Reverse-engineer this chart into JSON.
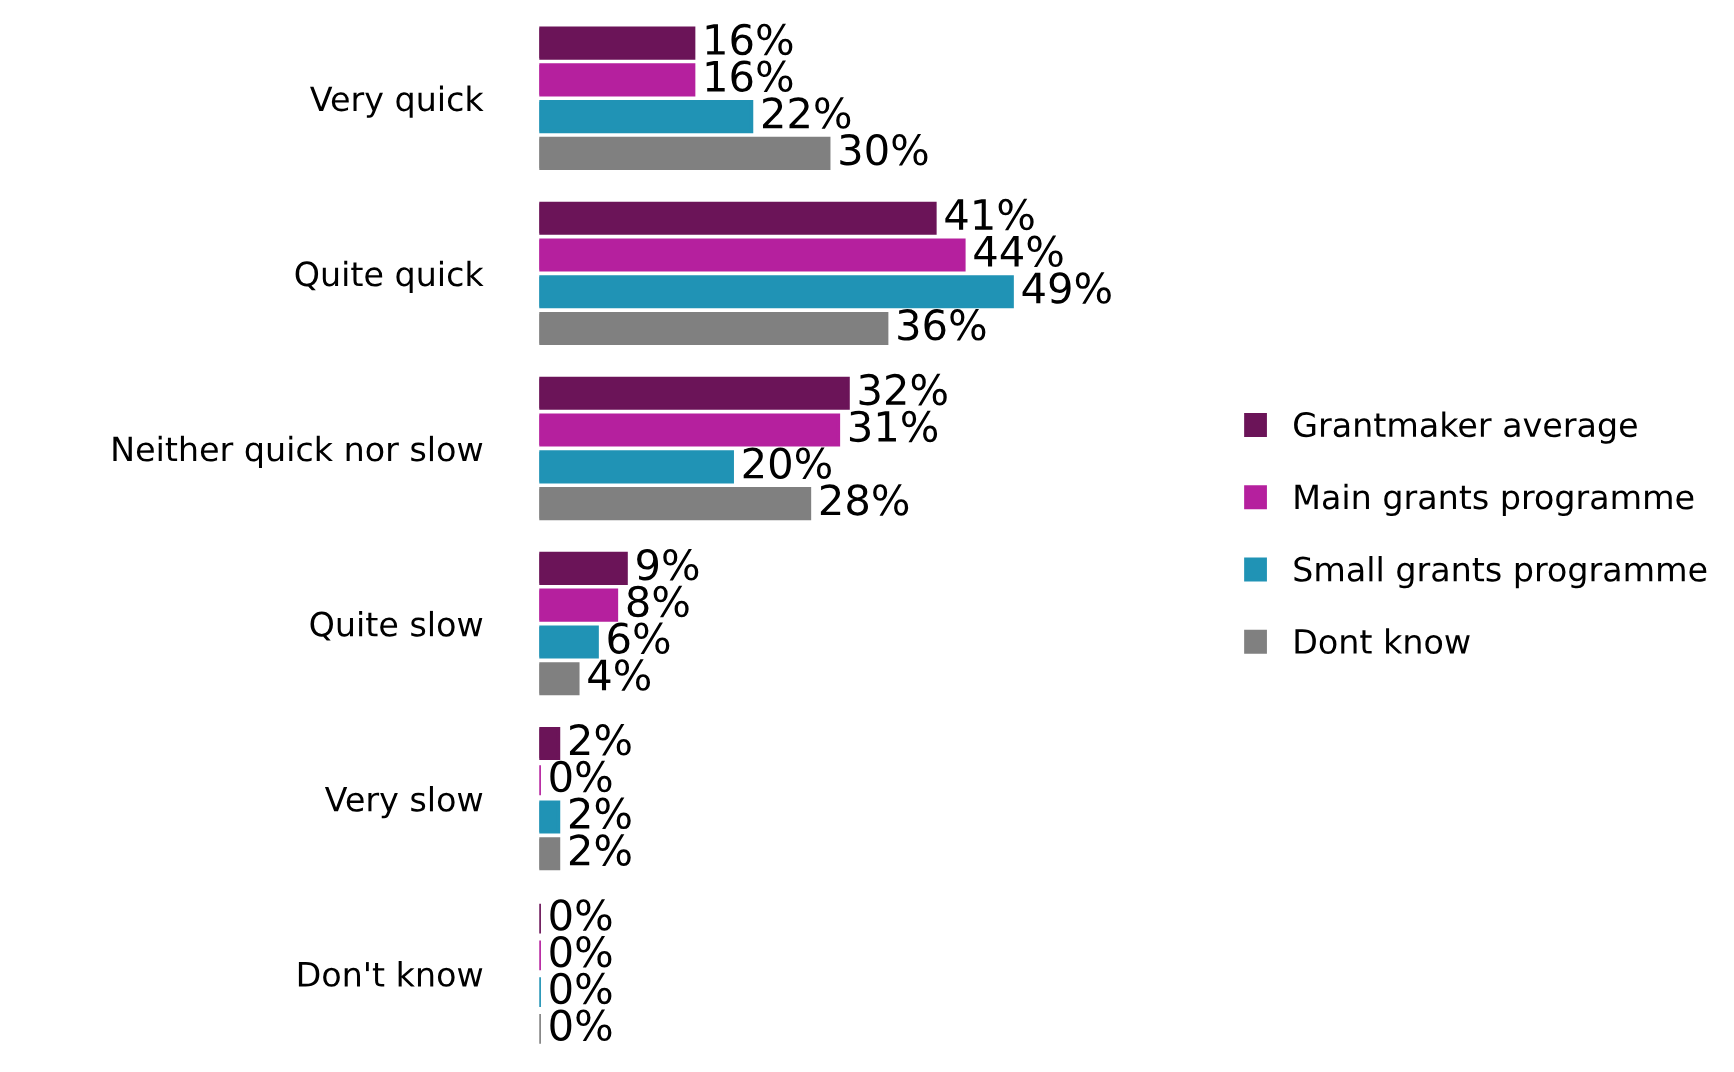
{
  "chart_data": {
    "type": "bar",
    "orientation": "horizontal",
    "categories": [
      "Very quick",
      "Quite quick",
      "Neither quick nor slow",
      "Quite slow",
      "Very slow",
      "Don't know"
    ],
    "series": [
      {
        "name": "Grantmaker average",
        "color": "#6b1458",
        "values": [
          16,
          41,
          32,
          9,
          2,
          0
        ],
        "value_labels": [
          "16%",
          "41%",
          "32%",
          "9%",
          "2%",
          "0%"
        ]
      },
      {
        "name": "Main grants programme",
        "color": "#b5209e",
        "values": [
          16,
          44,
          31,
          8,
          0,
          0
        ],
        "value_labels": [
          "16%",
          "44%",
          "31%",
          "8%",
          "0%",
          "0%"
        ]
      },
      {
        "name": "Small grants programme",
        "color": "#2093b5",
        "values": [
          22,
          49,
          20,
          6,
          2,
          0
        ],
        "value_labels": [
          "22%",
          "49%",
          "20%",
          "6%",
          "2%",
          "0%"
        ]
      },
      {
        "name": "Dont know",
        "color": "#808080",
        "values": [
          30,
          36,
          28,
          4,
          2,
          0
        ],
        "value_labels": [
          "30%",
          "36%",
          "28%",
          "4%",
          "2%",
          "0%"
        ]
      }
    ],
    "tick_labels": "y",
    "legend": "right",
    "grid": false
  }
}
